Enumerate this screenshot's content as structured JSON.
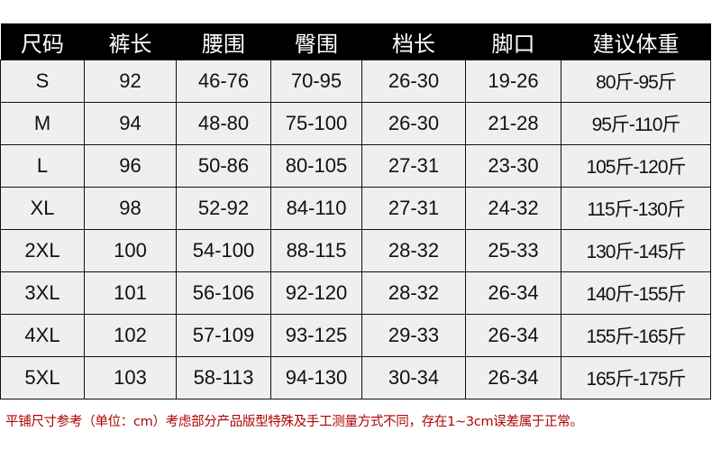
{
  "table": {
    "headers": [
      "尺码",
      "裤长",
      "腰围",
      "臀围",
      "档长",
      "脚口",
      "建议体重"
    ],
    "rows": [
      [
        "S",
        "92",
        "46-76",
        "70-95",
        "26-30",
        "19-26",
        "80斤-95斤"
      ],
      [
        "M",
        "94",
        "48-80",
        "75-100",
        "26-30",
        "21-28",
        "95斤-110斤"
      ],
      [
        "L",
        "96",
        "50-86",
        "80-105",
        "27-31",
        "23-30",
        "105斤-120斤"
      ],
      [
        "XL",
        "98",
        "52-92",
        "84-110",
        "27-31",
        "24-32",
        "115斤-130斤"
      ],
      [
        "2XL",
        "100",
        "54-100",
        "88-115",
        "28-32",
        "25-33",
        "130斤-145斤"
      ],
      [
        "3XL",
        "101",
        "56-106",
        "92-120",
        "28-32",
        "26-34",
        "140斤-155斤"
      ],
      [
        "4XL",
        "102",
        "57-109",
        "93-125",
        "29-33",
        "26-34",
        "155斤-165斤"
      ],
      [
        "5XL",
        "103",
        "58-113",
        "94-130",
        "30-34",
        "26-34",
        "165斤-175斤"
      ]
    ]
  },
  "note": "平铺尺寸参考（单位：cm）考虑部分产品版型特殊及手工测量方式不同，存在1~3cm误差属于正常。",
  "colors": {
    "header_bg": "#000000",
    "cell_bg": "#efefef",
    "note": "#b00000"
  }
}
